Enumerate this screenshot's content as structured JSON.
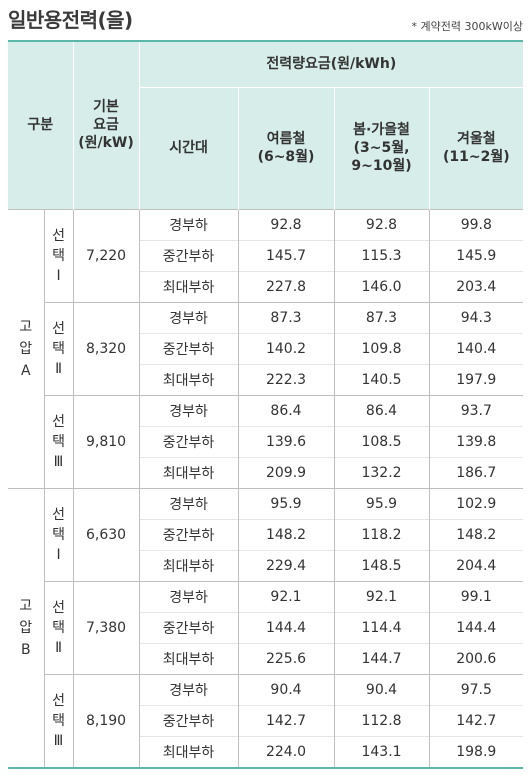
{
  "title": "일반용전력(을)",
  "note": "* 계약전력 300kW이상",
  "header": {
    "category": "구분",
    "base_fee": [
      "기본",
      "요금",
      "(원/kW)"
    ],
    "energy_fee": "전력량요금(원/kWh)",
    "time_slot": "시간대",
    "summer": [
      "여름철",
      "(6~8월)"
    ],
    "spring_fall": [
      "봄·가을철",
      "(3~5월,",
      "9~10월)"
    ],
    "winter": [
      "겨울철",
      "(11~2월)"
    ]
  },
  "groups": [
    {
      "name": [
        "고",
        "압",
        "A"
      ],
      "options": [
        {
          "label": [
            "선",
            "택",
            "Ⅰ"
          ],
          "base": "7,220",
          "rows": [
            [
              "경부하",
              "92.8",
              "92.8",
              "99.8"
            ],
            [
              "중간부하",
              "145.7",
              "115.3",
              "145.9"
            ],
            [
              "최대부하",
              "227.8",
              "146.0",
              "203.4"
            ]
          ]
        },
        {
          "label": [
            "선",
            "택",
            "Ⅱ"
          ],
          "base": "8,320",
          "rows": [
            [
              "경부하",
              "87.3",
              "87.3",
              "94.3"
            ],
            [
              "중간부하",
              "140.2",
              "109.8",
              "140.4"
            ],
            [
              "최대부하",
              "222.3",
              "140.5",
              "197.9"
            ]
          ]
        },
        {
          "label": [
            "선",
            "택",
            "Ⅲ"
          ],
          "base": "9,810",
          "rows": [
            [
              "경부하",
              "86.4",
              "86.4",
              "93.7"
            ],
            [
              "중간부하",
              "139.6",
              "108.5",
              "139.8"
            ],
            [
              "최대부하",
              "209.9",
              "132.2",
              "186.7"
            ]
          ]
        }
      ]
    },
    {
      "name": [
        "고",
        "압",
        "B"
      ],
      "options": [
        {
          "label": [
            "선",
            "택",
            "Ⅰ"
          ],
          "base": "6,630",
          "rows": [
            [
              "경부하",
              "95.9",
              "95.9",
              "102.9"
            ],
            [
              "중간부하",
              "148.2",
              "118.2",
              "148.2"
            ],
            [
              "최대부하",
              "229.4",
              "148.5",
              "204.4"
            ]
          ]
        },
        {
          "label": [
            "선",
            "택",
            "Ⅱ"
          ],
          "base": "7,380",
          "rows": [
            [
              "경부하",
              "92.1",
              "92.1",
              "99.1"
            ],
            [
              "중간부하",
              "144.4",
              "114.4",
              "144.4"
            ],
            [
              "최대부하",
              "225.6",
              "144.7",
              "200.6"
            ]
          ]
        },
        {
          "label": [
            "선",
            "택",
            "Ⅲ"
          ],
          "base": "8,190",
          "rows": [
            [
              "경부하",
              "90.4",
              "90.4",
              "97.5"
            ],
            [
              "중간부하",
              "142.7",
              "112.8",
              "142.7"
            ],
            [
              "최대부하",
              "224.0",
              "143.1",
              "198.9"
            ]
          ]
        }
      ]
    }
  ]
}
